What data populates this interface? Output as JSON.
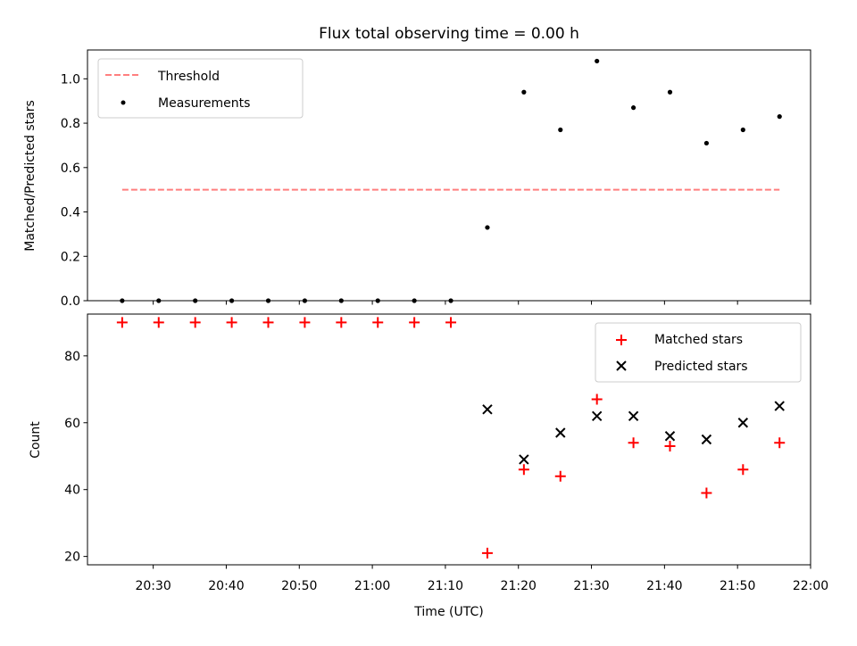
{
  "chart_data": {
    "type": "scatter",
    "title": "Flux total observing time = 0.00 h",
    "xlabel": "Time (UTC)",
    "x_tick_labels": [
      "20:30",
      "20:40",
      "20:50",
      "21:00",
      "21:10",
      "21:20",
      "21:30",
      "21:40",
      "21:50",
      "22:00"
    ],
    "x": [
      "20:25:45",
      "20:30:45",
      "20:35:45",
      "20:40:45",
      "20:45:45",
      "20:50:45",
      "20:55:45",
      "21:00:45",
      "21:05:45",
      "21:10:45",
      "21:15:45",
      "21:20:45",
      "21:25:45",
      "21:30:45",
      "21:35:45",
      "21:40:45",
      "21:45:45",
      "21:50:45",
      "21:55:45"
    ],
    "xlim": [
      "20:21:00",
      "22:00:00"
    ],
    "panels": [
      {
        "ylabel": "Matched/Predicted stars",
        "ylim": [
          0,
          1.13
        ],
        "y_ticks": [
          0.0,
          0.2,
          0.4,
          0.6,
          0.8,
          1.0
        ],
        "y_tick_labels": [
          "0.0",
          "0.2",
          "0.4",
          "0.6",
          "0.8",
          "1.0"
        ],
        "legend_position": "upper left",
        "series": [
          {
            "name": "Threshold",
            "kind": "dashed-line",
            "color": "#ff7f7f",
            "x": [
              "20:25:45",
              "21:55:45"
            ],
            "values": [
              0.5,
              0.5
            ]
          },
          {
            "name": "Measurements",
            "kind": "dot",
            "color": "#000000",
            "values": [
              0,
              0,
              0,
              0,
              0,
              0,
              0,
              0,
              0,
              0,
              0.33,
              0.94,
              0.77,
              1.08,
              0.87,
              0.94,
              0.71,
              0.77,
              0.83
            ]
          }
        ]
      },
      {
        "ylabel": "Count",
        "ylim": [
          17.5,
          92.5
        ],
        "y_ticks": [
          20,
          40,
          60,
          80
        ],
        "y_tick_labels": [
          "20",
          "40",
          "60",
          "80"
        ],
        "legend_position": "upper right",
        "series": [
          {
            "name": "Matched stars",
            "kind": "plus",
            "color": "#ff0000",
            "values": [
              90,
              90,
              90,
              90,
              90,
              90,
              90,
              90,
              90,
              90,
              21,
              46,
              44,
              67,
              54,
              53,
              39,
              46,
              54
            ]
          },
          {
            "name": "Predicted stars",
            "kind": "cross",
            "color": "#000000",
            "values": [
              null,
              null,
              null,
              null,
              null,
              null,
              null,
              null,
              null,
              null,
              64,
              49,
              57,
              62,
              62,
              56,
              55,
              60,
              65
            ]
          }
        ]
      }
    ]
  }
}
